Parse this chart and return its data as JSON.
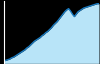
{
  "x": [
    0,
    1,
    2,
    3,
    4,
    5,
    6,
    7,
    8,
    9,
    10,
    11,
    12,
    13,
    14,
    15,
    16,
    17,
    18,
    19,
    20,
    21,
    22,
    23,
    24,
    25,
    26,
    27,
    28,
    29,
    30,
    31,
    32,
    33,
    34,
    35,
    36,
    37,
    38,
    39,
    40,
    41,
    42,
    43,
    44,
    45,
    46,
    47,
    48,
    49,
    50
  ],
  "y": [
    0.04,
    0.05,
    0.06,
    0.07,
    0.09,
    0.1,
    0.12,
    0.14,
    0.16,
    0.18,
    0.2,
    0.22,
    0.25,
    0.27,
    0.3,
    0.33,
    0.36,
    0.38,
    0.4,
    0.42,
    0.45,
    0.47,
    0.5,
    0.52,
    0.55,
    0.58,
    0.62,
    0.65,
    0.68,
    0.72,
    0.76,
    0.8,
    0.84,
    0.87,
    0.89,
    0.85,
    0.8,
    0.76,
    0.8,
    0.84,
    0.86,
    0.88,
    0.9,
    0.91,
    0.92,
    0.93,
    0.94,
    0.95,
    0.96,
    0.97,
    0.97
  ],
  "line_color": "#1a7abf",
  "fill_color": "#b8e4f8",
  "background_color": "#000000",
  "axis_color": "#ffffff",
  "line_width": 1.0
}
